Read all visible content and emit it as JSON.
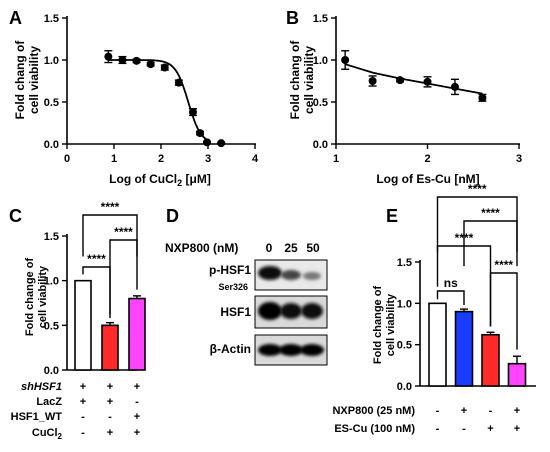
{
  "panels": {
    "A": {
      "letter": "A"
    },
    "B": {
      "letter": "B"
    },
    "C": {
      "letter": "C"
    },
    "D": {
      "letter": "D"
    },
    "E": {
      "letter": "E"
    }
  },
  "chart_data": [
    {
      "panel": "A",
      "type": "scatter",
      "title": "",
      "xlabel": "Log of CuCl",
      "xlabel_sub": "2",
      "xlabel_unit": " [μM]",
      "ylabel_lines": [
        "Fold chang of",
        "cell viability"
      ],
      "xlim": [
        0,
        4
      ],
      "ylim": [
        0,
        1.5
      ],
      "xticks": [
        "0",
        "1",
        "2",
        "3",
        "4"
      ],
      "yticks": [
        "0.0",
        "0.5",
        "1.0",
        "1.5"
      ],
      "points": [
        {
          "x": 0.88,
          "y": 1.04,
          "err": 0.07
        },
        {
          "x": 1.18,
          "y": 1.0,
          "err": 0.04
        },
        {
          "x": 1.48,
          "y": 0.99,
          "err": 0.02
        },
        {
          "x": 1.78,
          "y": 0.95,
          "err": 0.02
        },
        {
          "x": 2.08,
          "y": 0.91,
          "err": 0.03
        },
        {
          "x": 2.38,
          "y": 0.73,
          "err": 0.03
        },
        {
          "x": 2.68,
          "y": 0.38,
          "err": 0.04
        },
        {
          "x": 2.83,
          "y": 0.13,
          "err": 0.02
        },
        {
          "x": 2.98,
          "y": 0.02,
          "err": 0.01
        },
        {
          "x": 3.28,
          "y": 0.01,
          "err": 0.01
        }
      ],
      "fit": {
        "top": 1.0,
        "bottom": 0.0,
        "logIC50": 2.58,
        "hill": 3.2,
        "x_range": [
          0.88,
          3.0
        ]
      }
    },
    {
      "panel": "B",
      "type": "scatter",
      "title": "",
      "xlabel": "Log of Es-Cu [nM]",
      "ylabel_lines": [
        "Fold chang of",
        "cell viability"
      ],
      "xlim": [
        1,
        3
      ],
      "ylim": [
        0,
        1.5
      ],
      "xticks": [
        "1",
        "2",
        "3"
      ],
      "yticks": [
        "0.0",
        "0.5",
        "1.0",
        "1.5"
      ],
      "points": [
        {
          "x": 1.1,
          "y": 1.0,
          "err": 0.11
        },
        {
          "x": 1.4,
          "y": 0.75,
          "err": 0.06
        },
        {
          "x": 1.7,
          "y": 0.76,
          "err": 0.02
        },
        {
          "x": 2.0,
          "y": 0.74,
          "err": 0.06
        },
        {
          "x": 2.3,
          "y": 0.68,
          "err": 0.09
        },
        {
          "x": 2.6,
          "y": 0.55,
          "err": 0.04
        }
      ],
      "fit_line": [
        [
          1.1,
          0.95
        ],
        [
          1.4,
          0.85
        ],
        [
          1.7,
          0.78
        ],
        [
          2.0,
          0.72
        ],
        [
          2.3,
          0.66
        ],
        [
          2.6,
          0.6
        ]
      ]
    },
    {
      "panel": "C",
      "type": "bar",
      "title": "",
      "ylabel_lines": [
        "Fold change of",
        "cell viability"
      ],
      "ylim": [
        0,
        1.5
      ],
      "yticks": [
        "0.0",
        "0.5",
        "1.0",
        "1.5"
      ],
      "values": [
        1.0,
        0.5,
        0.8
      ],
      "errors": [
        0.0,
        0.03,
        0.03
      ],
      "colors": [
        "#ffffff",
        "#ff2a2a",
        "#ff44ff"
      ],
      "significance": [
        "****",
        "****",
        "****"
      ],
      "conditions": [
        {
          "name": "shHSF1",
          "signs": [
            "+",
            "+",
            "+"
          ]
        },
        {
          "name": "LacZ",
          "signs": [
            "+",
            "+",
            "-"
          ]
        },
        {
          "name": "HSF1_WT",
          "signs": [
            "-",
            "-",
            "+"
          ]
        },
        {
          "name": "CuCl",
          "sub": "2",
          "signs": [
            "-",
            "+",
            "+"
          ]
        }
      ]
    },
    {
      "panel": "E",
      "type": "bar",
      "title": "",
      "ylabel_lines": [
        "Fold change of",
        "cell viability"
      ],
      "ylim": [
        0,
        1.5
      ],
      "yticks": [
        "0.0",
        "0.5",
        "1.0",
        "1.5"
      ],
      "values": [
        1.0,
        0.9,
        0.62,
        0.27
      ],
      "errors": [
        0.0,
        0.03,
        0.03,
        0.09
      ],
      "colors": [
        "#ffffff",
        "#1a3cff",
        "#ff2a2a",
        "#ff44ff"
      ],
      "significance": [
        "ns",
        "****",
        "****",
        "****",
        "****"
      ],
      "conditions": [
        {
          "name": "NXP800 (25 nM)",
          "signs": [
            "-",
            "+",
            "-",
            "+"
          ]
        },
        {
          "name": "ES-Cu (100 nM)",
          "signs": [
            "-",
            "-",
            "+",
            "+"
          ]
        }
      ]
    }
  ],
  "blot": {
    "header": "NXP800 (nM)",
    "doses": [
      "0",
      "25",
      "50"
    ],
    "rows": [
      {
        "label": "p-HSF1",
        "sublabel": "Ser326"
      },
      {
        "label": "HSF1"
      },
      {
        "label": "β-Actin"
      }
    ]
  }
}
